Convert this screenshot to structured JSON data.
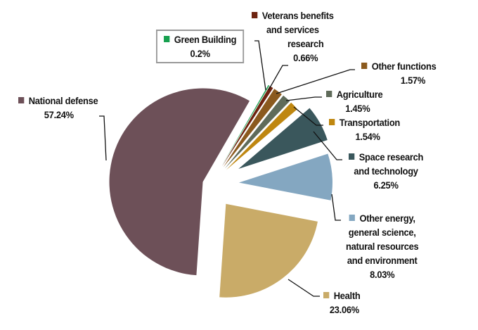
{
  "chart_data": {
    "type": "pie",
    "exploded": true,
    "slices": [
      {
        "name": "Green Building",
        "value": 0.2,
        "label": "0.2%",
        "color": "#17a04f"
      },
      {
        "name": "Veterans benefits and services research",
        "value": 0.66,
        "label": "0.66%",
        "color": "#6e2410"
      },
      {
        "name": "Other functions",
        "value": 1.57,
        "label": "1.57%",
        "color": "#8b5a1e"
      },
      {
        "name": "Agriculture",
        "value": 1.45,
        "label": "1.45%",
        "color": "#5f6b5a"
      },
      {
        "name": "Transportation",
        "value": 1.54,
        "label": "1.54%",
        "color": "#bf8710"
      },
      {
        "name": "Space research and technology",
        "value": 6.25,
        "label": "6.25%",
        "color": "#3a575c"
      },
      {
        "name": "Other energy, general science, natural resources and environment",
        "value": 8.03,
        "label": "8.03%",
        "color": "#84a7c1"
      },
      {
        "name": "Health",
        "value": 23.06,
        "label": "23.06%",
        "color": "#c9ab68"
      },
      {
        "name": "National defense",
        "value": 57.24,
        "label": "57.24%",
        "color": "#6d5058"
      }
    ]
  },
  "labels": {
    "green": {
      "lines": [
        "Green Building",
        "0.2%"
      ]
    },
    "veterans": {
      "lines": [
        "Veterans benefits",
        "and services",
        "research",
        "0.66%"
      ]
    },
    "other": {
      "lines": [
        "Other functions",
        "1.57%"
      ]
    },
    "agri": {
      "lines": [
        "Agriculture",
        "1.45%"
      ]
    },
    "trans": {
      "lines": [
        "Transportation",
        "1.54%"
      ]
    },
    "space": {
      "lines": [
        "Space research",
        "and technology",
        "6.25%"
      ]
    },
    "energy": {
      "lines": [
        "Other energy,",
        "general science,",
        "natural resources",
        "and environment",
        "8.03%"
      ]
    },
    "health": {
      "lines": [
        "Health",
        "23.06%"
      ]
    },
    "defense": {
      "lines": [
        "National defense",
        "57.24%"
      ]
    }
  }
}
